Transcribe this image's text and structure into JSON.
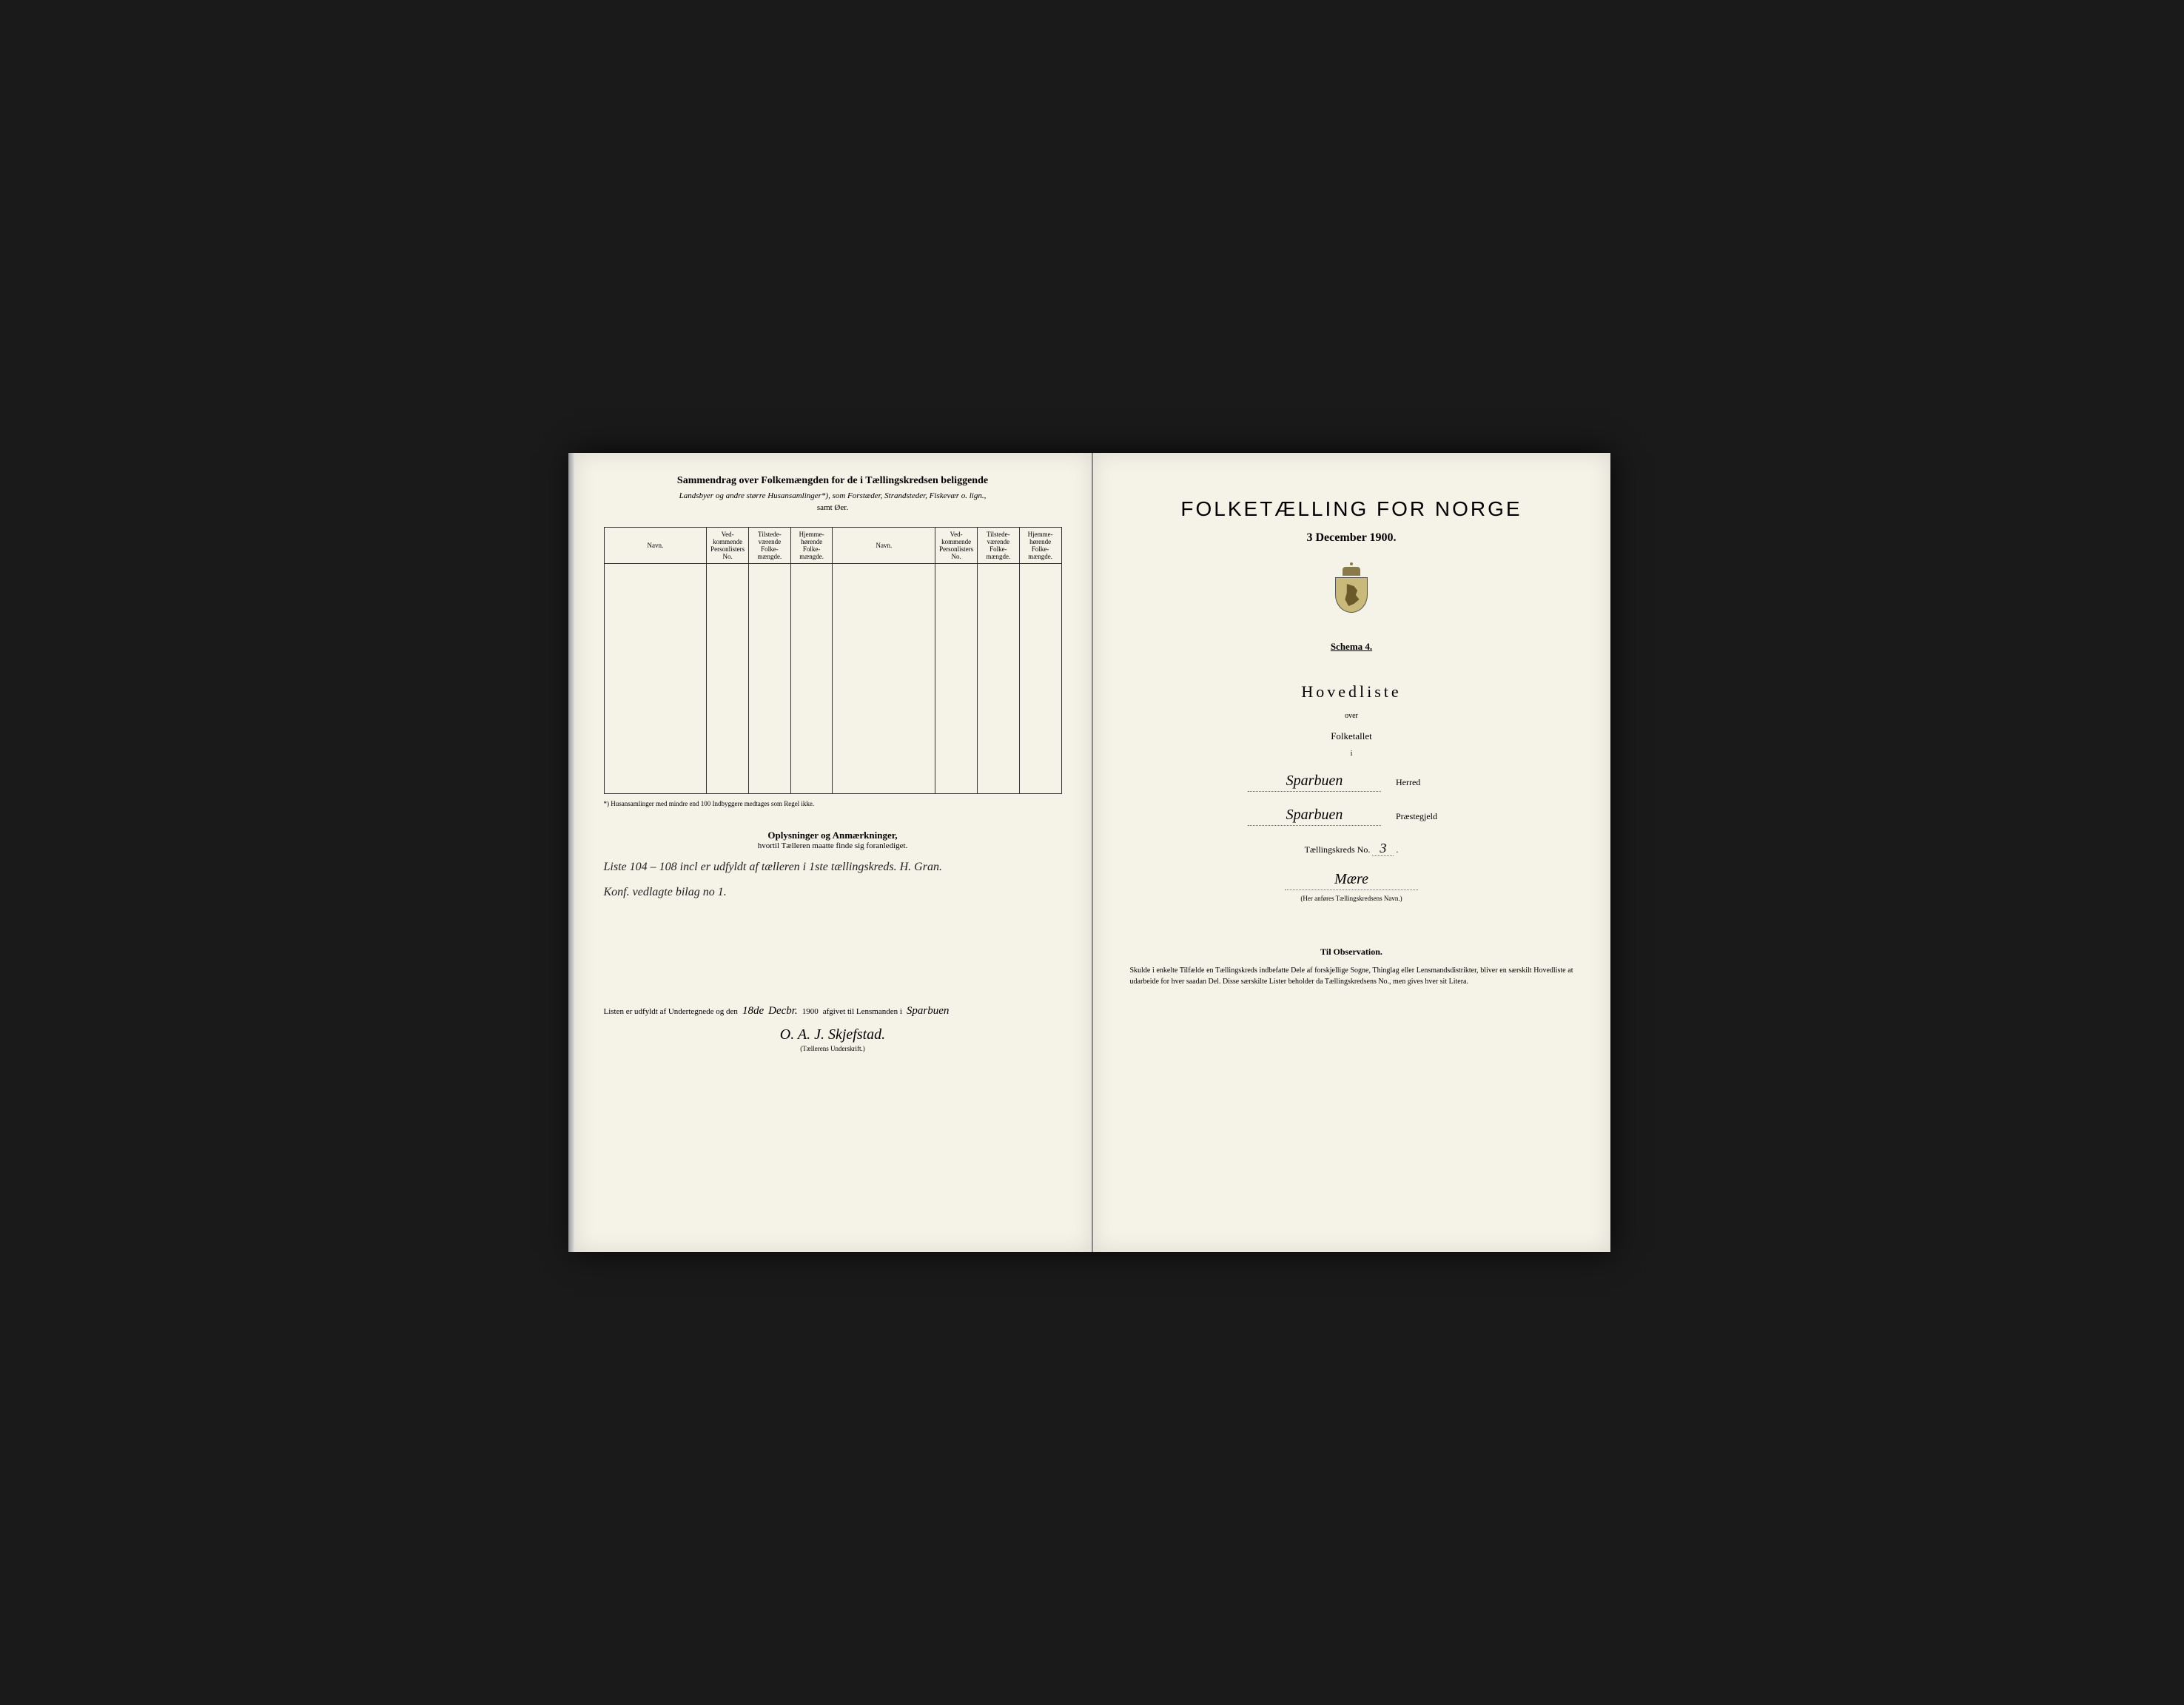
{
  "colors": {
    "page_bg": "#f5f2e8",
    "frame_bg": "#1a1a1a",
    "ink": "#222222",
    "border": "#333333"
  },
  "left": {
    "header_title": "Sammendrag over Folkemængden for de i Tællingskredsen beliggende",
    "header_sub1": "Landsbyer og andre større Husansamlinger*), som Forstæder, Strandsteder, Fiskevær o. lign.,",
    "header_sub2": "samt Øer.",
    "table_headers": {
      "navn": "Navn.",
      "vedkommende": "Ved-\nkommende\nPersonlisters\nNo.",
      "tilstede": "Tilstede-\nværende\nFolke-\nmængde.",
      "hjemme": "Hjemme-\nhørende\nFolke-\nmængde."
    },
    "footnote": "*) Husansamlinger med mindre end 100 Indbyggere medtages som Regel ikke.",
    "oplysninger_title": "Oplysninger og Anmærkninger,",
    "oplysninger_sub": "hvortil Tælleren maatte finde sig foranlediget.",
    "handwritten_line1": "Liste 104 – 108 incl er udfyldt af tælleren i 1ste tællingskreds. H. Gran.",
    "handwritten_line2": "Konf. vedlagte bilag no 1.",
    "sig_prefix": "Listen er udfyldt af Undertegnede og den",
    "sig_day": "18de",
    "sig_month": "Decbr.",
    "sig_year": "1900",
    "sig_mid": "afgivet til Lensmanden i",
    "sig_place": "Sparbuen",
    "signature": "O. A. J. Skjefstad.",
    "sig_caption": "(Tællerens Underskrift.)"
  },
  "right": {
    "main_title": "FOLKETÆLLING FOR NORGE",
    "date": "3 December 1900.",
    "schema": "Schema 4.",
    "hovedliste": "Hovedliste",
    "over": "over",
    "folketallet": "Folketallet",
    "i": "i",
    "herred_value": "Sparbuen",
    "herred_label": "Herred",
    "prestegjeld_value": "Sparbuen",
    "prestegjeld_label": "Præstegjeld",
    "kreds_label": "Tællingskreds No.",
    "kreds_no": "3",
    "kreds_name": "Mære",
    "kreds_caption": "(Her anføres Tællingskredsens Navn.)",
    "obs_title": "Til Observation.",
    "obs_text": "Skulde i enkelte Tilfælde en Tællingskreds indbefatte Dele af forskjellige Sogne, Thinglag eller Lensmandsdistrikter, bliver en særskilt Hovedliste at udarbeide for hver saadan Del. Disse særskilte Lister beholder da Tællingskredsens No., men gives hver sit Litera."
  }
}
